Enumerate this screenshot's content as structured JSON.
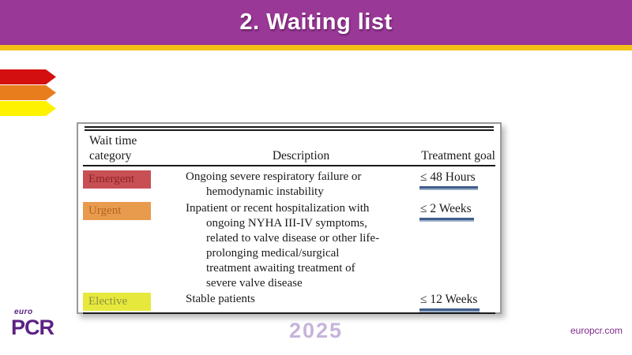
{
  "slide": {
    "title": "2. Waiting list"
  },
  "colors": {
    "header_purple": "#9a3897",
    "gold_stripe": "#f2c217",
    "arrow_red": "#d40f0f",
    "arrow_orange": "#e87d1e",
    "arrow_yellow": "#fef200",
    "emergent_bg": "#c85055",
    "emergent_text": "#8e2323",
    "urgent_bg": "#e89a4d",
    "urgent_text": "#b4651f",
    "elective_bg": "#e6e93b",
    "elective_text": "#8f9045",
    "goal_underline_blue": "#3f5e8c",
    "logo_purple": "#5d2184",
    "year_lilac": "#c6b4db",
    "website_purple": "#7c2b8a"
  },
  "table": {
    "header": {
      "wait_time_category": [
        "Wait time",
        "category"
      ],
      "description": "Description",
      "treatment_goal": "Treatment goal"
    },
    "rows": [
      {
        "category": "Emergent",
        "description": [
          "Ongoing severe respiratory failure or",
          "hemodynamic instability"
        ],
        "goal": "≤ 48 Hours"
      },
      {
        "category": "Urgent",
        "description": [
          "Inpatient or recent hospitalization with",
          "ongoing NYHA III-IV symptoms,",
          "related to valve disease or other life-",
          "prolonging medical/surgical",
          "treatment awaiting treatment of",
          "severe valve disease"
        ],
        "goal": "≤ 2 Weeks"
      },
      {
        "category": "Elective",
        "description": [
          "Stable patients"
        ],
        "goal": "≤ 12 Weeks"
      }
    ]
  },
  "footer": {
    "logo_top": "euro",
    "logo_main": "PCR",
    "year": "2025",
    "website": "europcr.com"
  }
}
